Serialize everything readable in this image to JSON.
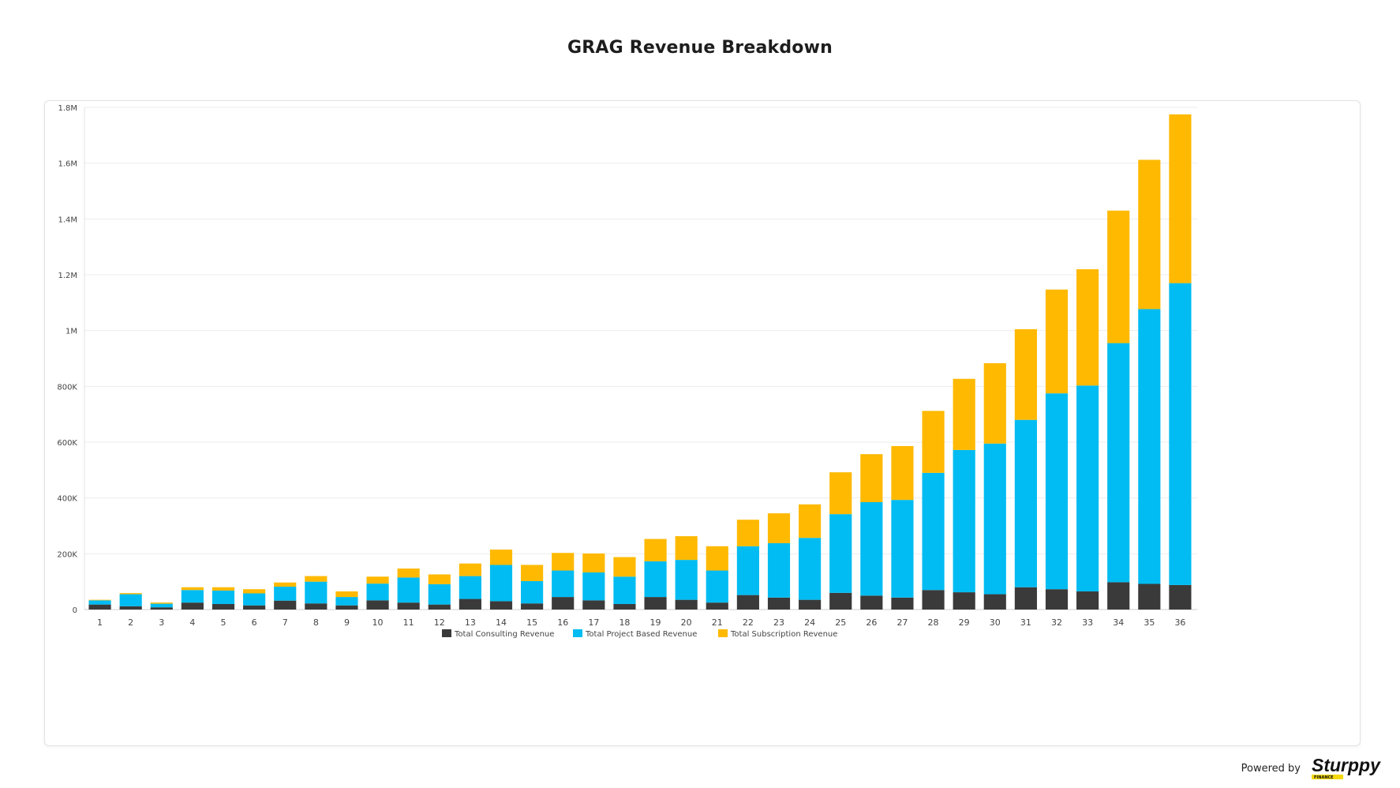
{
  "page": {
    "title": "GRAG Revenue Breakdown"
  },
  "footer": {
    "powered_by": "Powered by",
    "logo_word": "Sturppy",
    "logo_sub": "FINANCE"
  },
  "colors": {
    "consulting": "#3a3a3a",
    "project": "#00bcf2",
    "subscription": "#ffb900",
    "grid": "#ededed",
    "axis_text": "#444444"
  },
  "chart_data": {
    "type": "bar",
    "stacked": true,
    "title": "GRAG Revenue Breakdown",
    "xlabel": "",
    "ylabel": "",
    "ylim": [
      0,
      1800000
    ],
    "y_ticks": [
      0,
      200000,
      400000,
      600000,
      800000,
      1000000,
      1200000,
      1400000,
      1600000,
      1800000
    ],
    "y_tick_labels": [
      "0",
      "200K",
      "400K",
      "600K",
      "800K",
      "1M",
      "1.2M",
      "1.4M",
      "1.6M",
      "1.8M"
    ],
    "grid": true,
    "legend_position": "bottom-center",
    "categories": [
      "1",
      "2",
      "3",
      "4",
      "5",
      "6",
      "7",
      "8",
      "9",
      "10",
      "11",
      "12",
      "13",
      "14",
      "15",
      "16",
      "17",
      "18",
      "19",
      "20",
      "21",
      "22",
      "23",
      "24",
      "25",
      "26",
      "27",
      "28",
      "29",
      "30",
      "31",
      "32",
      "33",
      "34",
      "35",
      "36"
    ],
    "series": [
      {
        "name": "Total Consulting Revenue",
        "color": "#3a3a3a",
        "values": [
          18000,
          12000,
          8000,
          25000,
          20000,
          15000,
          32000,
          22000,
          15000,
          33000,
          25000,
          18000,
          38000,
          30000,
          22000,
          45000,
          33000,
          20000,
          45000,
          35000,
          25000,
          52000,
          43000,
          35000,
          60000,
          50000,
          43000,
          70000,
          62000,
          55000,
          80000,
          73000,
          65000,
          98000,
          92000,
          88000
        ]
      },
      {
        "name": "Total Project Based Revenue",
        "color": "#00bcf2",
        "values": [
          15000,
          43000,
          13000,
          45000,
          48000,
          43000,
          50000,
          78000,
          30000,
          60000,
          90000,
          73000,
          82000,
          130000,
          80000,
          95000,
          100000,
          98000,
          128000,
          143000,
          115000,
          175000,
          195000,
          222000,
          282000,
          335000,
          350000,
          420000,
          510000,
          540000,
          600000,
          702000,
          738000,
          857000,
          985000,
          1082000
        ]
      },
      {
        "name": "Total Subscription Revenue",
        "color": "#ffb900",
        "values": [
          2000,
          4000,
          4000,
          10000,
          12000,
          15000,
          15000,
          20000,
          20000,
          25000,
          32000,
          35000,
          45000,
          55000,
          58000,
          63000,
          68000,
          70000,
          80000,
          85000,
          87000,
          95000,
          107000,
          120000,
          150000,
          172000,
          193000,
          222000,
          255000,
          288000,
          325000,
          372000,
          417000,
          475000,
          535000,
          605000
        ]
      }
    ]
  }
}
